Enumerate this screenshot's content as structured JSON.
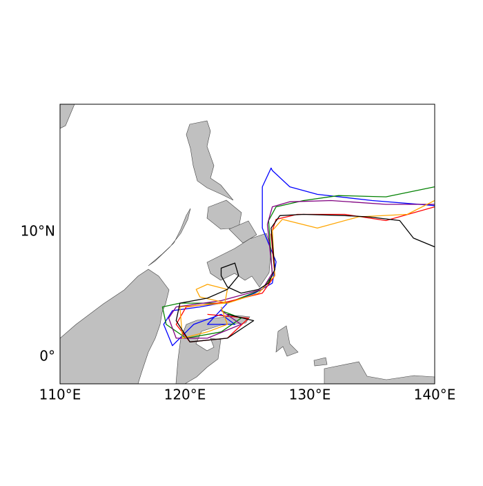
{
  "chart_data": {
    "type": "line",
    "xlim": [
      110,
      140
    ],
    "ylim": [
      -2.15,
      20.2
    ],
    "xticks": [
      {
        "value": 110,
        "label": "110°E"
      },
      {
        "value": 120,
        "label": "120°E"
      },
      {
        "value": 130,
        "label": "130°E"
      },
      {
        "value": 140,
        "label": "140°E"
      }
    ],
    "yticks": [
      {
        "value": 0,
        "label": "0°"
      },
      {
        "value": 10,
        "label": "10°N"
      }
    ],
    "series": [
      {
        "color": "#0000ff",
        "x": [
          140,
          135,
          130.6,
          128.4,
          127.0,
          126.9,
          126.2,
          126.2,
          127.3,
          127.0,
          125.6,
          124.0,
          121.2,
          119.0,
          118.3,
          119.0,
          120.7,
          122.9,
          124.0,
          121.8,
          123.4
        ],
        "y": [
          12.1,
          12.5,
          13.0,
          13.6,
          14.9,
          15.1,
          13.6,
          10.3,
          7.6,
          5.9,
          5.1,
          4.5,
          4.0,
          3.7,
          2.6,
          0.9,
          2.6,
          3.4,
          2.6,
          2.6,
          4.3
        ]
      },
      {
        "color": "#008000",
        "x": [
          140,
          136.1,
          132.3,
          129.5,
          127.3,
          126.7,
          127.0,
          126.2,
          123.4,
          119.6,
          118.2,
          118.5,
          120.1,
          122.9,
          124.5,
          122.9
        ],
        "y": [
          13.6,
          12.8,
          12.9,
          12.5,
          12.0,
          10.9,
          6.5,
          5.4,
          4.3,
          4.3,
          4.0,
          2.6,
          1.5,
          2.0,
          3.1,
          3.7
        ]
      },
      {
        "color": "#ff0000",
        "x": [
          140,
          136.1,
          132.8,
          129.0,
          127.3,
          126.9,
          127.2,
          126.2,
          123.4,
          120.1,
          119.3,
          120.4,
          123.4,
          125.1,
          121.8
        ],
        "y": [
          12.0,
          10.9,
          11.4,
          11.4,
          11.0,
          9.8,
          6.5,
          5.1,
          4.4,
          4.0,
          2.6,
          1.2,
          1.5,
          3.1,
          3.4
        ]
      },
      {
        "color": "#800080",
        "x": [
          140,
          136.1,
          131.7,
          128.4,
          127.0,
          126.6,
          127.0,
          126.2,
          122.9,
          119.3,
          118.7,
          119.3,
          121.8,
          124.5,
          122.9
        ],
        "y": [
          12.2,
          12.2,
          12.5,
          12.4,
          12.0,
          10.6,
          6.7,
          5.4,
          4.5,
          4.0,
          3.1,
          1.5,
          1.5,
          2.6,
          3.7
        ]
      },
      {
        "color": "#ffa500",
        "x": [
          140,
          137.8,
          133.9,
          130.6,
          127.8,
          127.0,
          127.2,
          125.9,
          123.4,
          121.2,
          120.9,
          121.8,
          123.4,
          123.2,
          119.6,
          119.8,
          121.8,
          123.4,
          122.9
        ],
        "y": [
          12.5,
          11.4,
          11.2,
          10.3,
          11.0,
          10.1,
          6.5,
          5.1,
          4.3,
          4.8,
          5.4,
          5.8,
          5.4,
          4.3,
          4.0,
          1.5,
          2.0,
          2.6,
          4.0
        ]
      },
      {
        "color": "#000000",
        "x": [
          140,
          138.3,
          137.2,
          134.7,
          132.8,
          129.5,
          127.6,
          126.9,
          127.2,
          126.7,
          125.9,
          124.5,
          123.4,
          122.9,
          122.9,
          124.0,
          124.3,
          123.4,
          121.8,
          119.6,
          119.3,
          120.4,
          123.4,
          125.5,
          123.4
        ],
        "y": [
          8.8,
          9.5,
          10.9,
          11.2,
          11.3,
          11.4,
          11.3,
          10.3,
          7.0,
          5.9,
          5.4,
          5.1,
          5.6,
          6.5,
          7.1,
          7.5,
          6.5,
          5.4,
          4.7,
          4.3,
          2.9,
          1.2,
          1.5,
          2.9,
          3.4
        ]
      }
    ]
  }
}
